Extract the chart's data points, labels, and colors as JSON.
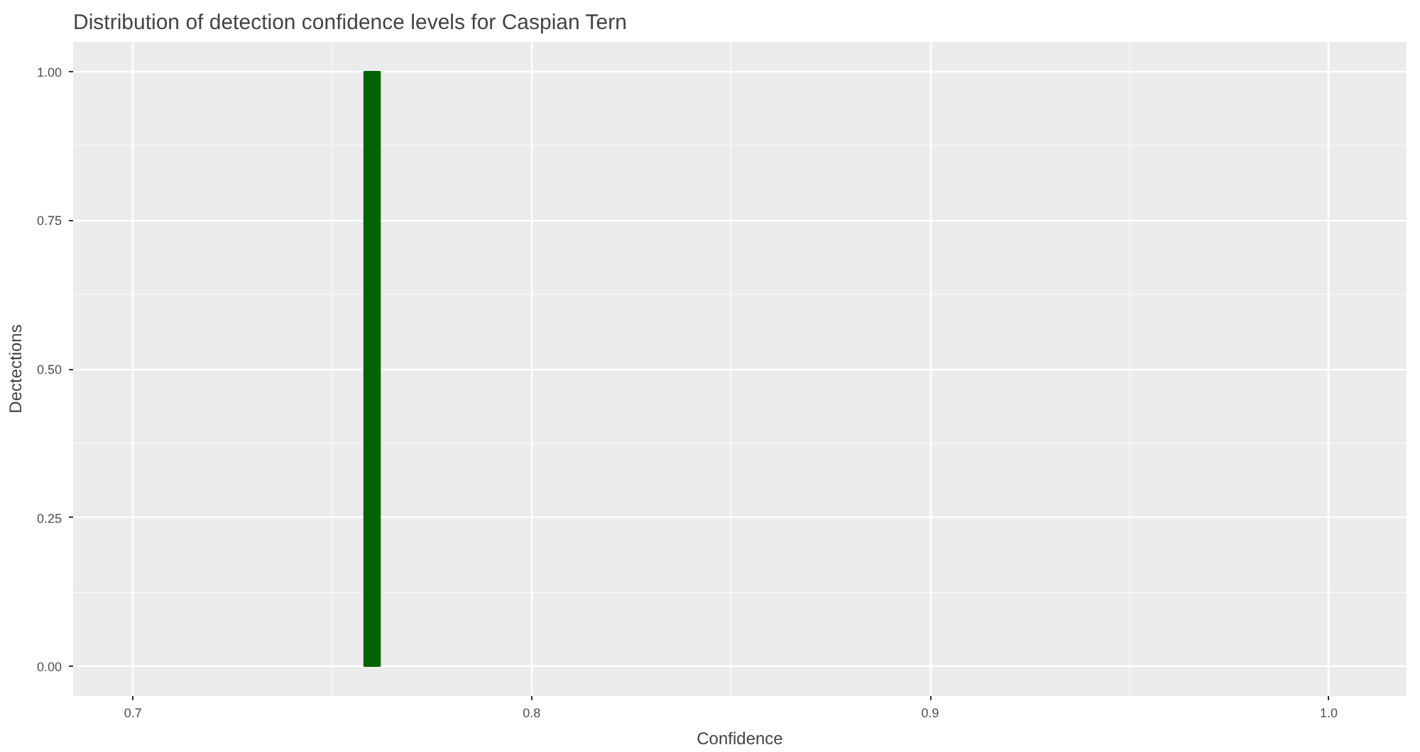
{
  "chart_data": {
    "type": "histogram",
    "title": "Distribution of detection confidence levels for Caspian Tern",
    "xlabel": "Confidence",
    "ylabel": "Dectections",
    "bins": [
      0.758,
      0.762
    ],
    "values": [
      1
    ],
    "color": "#006400",
    "xlim": [
      0.685,
      1.0195
    ],
    "xticks": [
      0.7,
      0.8,
      0.9,
      {
        "value": 1,
        "label": "1.0"
      }
    ],
    "ylim": [
      -0.05,
      1.05
    ],
    "yticks": [
      {
        "value": 0,
        "label": "0.00"
      },
      {
        "value": 0.25,
        "label": "0.25"
      },
      {
        "value": 0.5,
        "label": "0.50"
      },
      {
        "value": 0.75,
        "label": "0.75"
      },
      {
        "value": 1,
        "label": "1.00"
      }
    ],
    "grid": true
  }
}
